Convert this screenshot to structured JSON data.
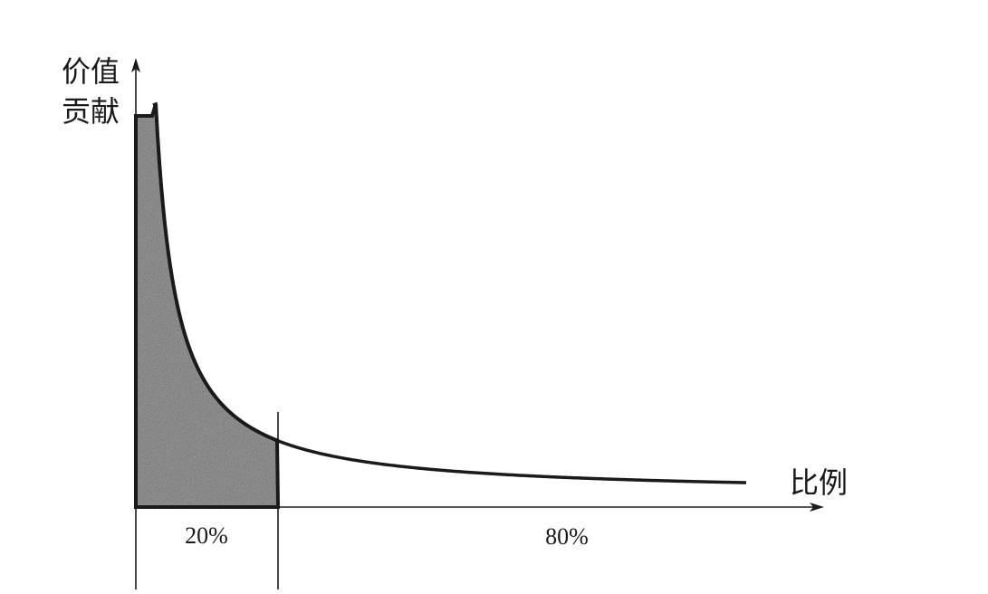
{
  "y_axis_label": [
    "价值",
    "贡献"
  ],
  "x_axis_label": "比例",
  "segments": [
    {
      "label": "20%",
      "shaded": true
    },
    {
      "label": "80%",
      "shaded": false
    }
  ],
  "colors": {
    "line": "#1a1a1a",
    "shade_base": "#9a9a9a"
  }
}
